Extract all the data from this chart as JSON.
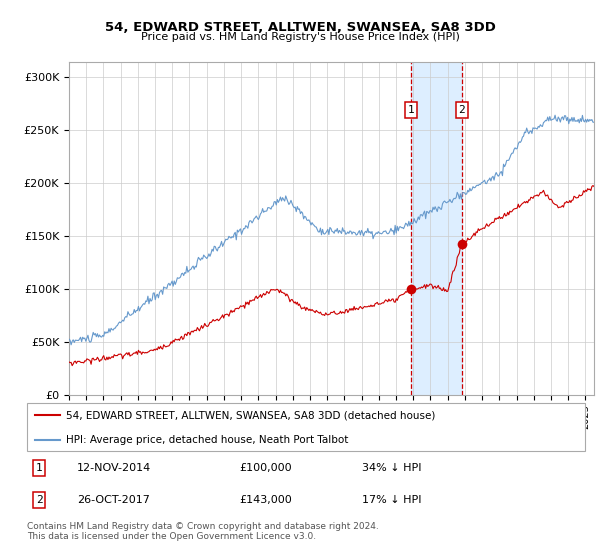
{
  "title": "54, EDWARD STREET, ALLTWEN, SWANSEA, SA8 3DD",
  "subtitle": "Price paid vs. HM Land Registry's House Price Index (HPI)",
  "ylabel_ticks": [
    "£0",
    "£50K",
    "£100K",
    "£150K",
    "£200K",
    "£250K",
    "£300K"
  ],
  "ytick_values": [
    0,
    50000,
    100000,
    150000,
    200000,
    250000,
    300000
  ],
  "ylim": [
    0,
    315000
  ],
  "xlim_start": 1995.0,
  "xlim_end": 2025.5,
  "sale1_date": 2014.87,
  "sale1_price": 100000,
  "sale2_date": 2017.83,
  "sale2_price": 143000,
  "sale_color": "#cc0000",
  "hpi_color": "#6699cc",
  "shade_color": "#ddeeff",
  "legend_label_sale": "54, EDWARD STREET, ALLTWEN, SWANSEA, SA8 3DD (detached house)",
  "legend_label_hpi": "HPI: Average price, detached house, Neath Port Talbot",
  "annotation1_label": "1",
  "annotation1_date": "12-NOV-2014",
  "annotation1_price": "£100,000",
  "annotation1_hpi": "34% ↓ HPI",
  "annotation2_label": "2",
  "annotation2_date": "26-OCT-2017",
  "annotation2_price": "£143,000",
  "annotation2_hpi": "17% ↓ HPI",
  "footer": "Contains HM Land Registry data © Crown copyright and database right 2024.\nThis data is licensed under the Open Government Licence v3.0."
}
